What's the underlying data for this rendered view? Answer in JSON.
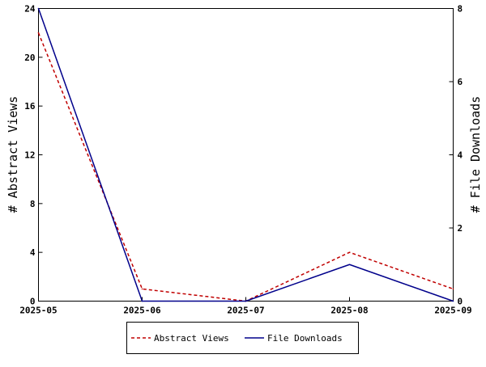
{
  "chart_data": {
    "type": "line",
    "x": [
      "2025-05",
      "2025-06",
      "2025-07",
      "2025-08",
      "2025-09"
    ],
    "series": [
      {
        "name": "Abstract Views",
        "axis": "left",
        "values": [
          22,
          1,
          0,
          4,
          1
        ],
        "color": "#c00000",
        "style": "dashed"
      },
      {
        "name": "File Downloads",
        "axis": "right",
        "values": [
          8,
          0,
          0,
          1,
          0
        ],
        "color": "#00008b",
        "style": "solid"
      }
    ],
    "ylabel": "# Abstract Views",
    "y2label": "# File Downloads",
    "ylim": [
      0,
      24
    ],
    "y2lim": [
      0,
      8
    ],
    "yticks": [
      0,
      4,
      8,
      12,
      16,
      20,
      24
    ],
    "y2ticks": [
      0,
      2,
      4,
      6,
      8
    ],
    "grid": false,
    "legend_position": "bottom-center"
  }
}
